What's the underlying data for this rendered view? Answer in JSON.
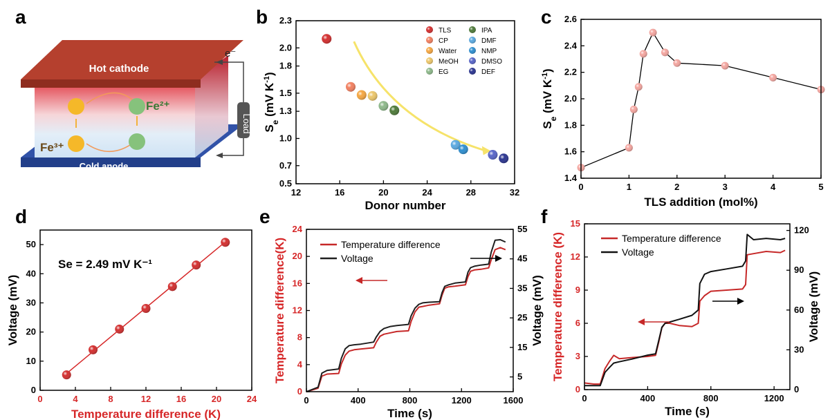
{
  "panel_labels": {
    "a": "a",
    "b": "b",
    "c": "c",
    "d": "d",
    "e": "e",
    "f": "f"
  },
  "schematic": {
    "hot_label": "Hot cathode",
    "cold_label": "Cold anode",
    "load_label": "Load",
    "electron_label": "e⁻",
    "fe2_label": "Fe²⁺",
    "fe3_label": "Fe³⁺"
  },
  "chart_data": [
    {
      "panel": "b",
      "type": "scatter",
      "xlabel": "Donor number",
      "ylabel": "Se (mV K⁻¹)",
      "xlim": [
        12,
        32
      ],
      "ylim": [
        0.5,
        2.3
      ],
      "xticks": [
        "12",
        "16",
        "20",
        "24",
        "28",
        "32"
      ],
      "yticks": [
        "0.5",
        "0.7",
        "1.0",
        "1.3",
        "1.5",
        "1.8",
        "2.0",
        "2.3"
      ],
      "points": [
        {
          "name": "TLS",
          "x": 14.8,
          "y": 2.1,
          "color": "#d32f2f"
        },
        {
          "name": "CP",
          "x": 17.0,
          "y": 1.57,
          "color": "#f28060"
        },
        {
          "name": "Water",
          "x": 18.0,
          "y": 1.48,
          "color": "#f5a742"
        },
        {
          "name": "MeOH",
          "x": 19.0,
          "y": 1.47,
          "color": "#ecc66a"
        },
        {
          "name": "EG",
          "x": 20.0,
          "y": 1.36,
          "color": "#8db88a"
        },
        {
          "name": "IPA",
          "x": 21.0,
          "y": 1.31,
          "color": "#4e7a3a"
        },
        {
          "name": "DMF",
          "x": 26.6,
          "y": 0.93,
          "color": "#5ba9e0"
        },
        {
          "name": "NMP",
          "x": 27.3,
          "y": 0.88,
          "color": "#2f8fd0"
        },
        {
          "name": "DMSO",
          "x": 30.0,
          "y": 0.82,
          "color": "#5865c8"
        },
        {
          "name": "DEF",
          "x": 31.0,
          "y": 0.78,
          "color": "#2b3590"
        }
      ],
      "legend_left": [
        "TLS",
        "CP",
        "Water",
        "MeOH",
        "EG"
      ],
      "legend_right": [
        "IPA",
        "DMF",
        "NMP",
        "DMSO",
        "DEF"
      ],
      "trend_arrow_color": "#f6e36a"
    },
    {
      "panel": "c",
      "type": "line",
      "xlabel": "TLS addition (mol%)",
      "ylabel": "Se (mV K⁻¹)",
      "xlim": [
        0,
        5
      ],
      "ylim": [
        1.4,
        2.6
      ],
      "xticks": [
        "0",
        "1",
        "2",
        "3",
        "4",
        "5"
      ],
      "yticks": [
        "1.4",
        "1.6",
        "1.8",
        "2.0",
        "2.2",
        "2.4",
        "2.6"
      ],
      "x": [
        0,
        1.0,
        1.1,
        1.2,
        1.3,
        1.5,
        1.75,
        2.0,
        3.0,
        4.0,
        5.0
      ],
      "y": [
        1.48,
        1.63,
        1.92,
        2.09,
        2.34,
        2.5,
        2.35,
        2.27,
        2.25,
        2.16,
        2.07
      ],
      "marker_color": "#f4a6a0"
    },
    {
      "panel": "d",
      "type": "scatter",
      "xlabel": "Temperature difference (K)",
      "ylabel": "Voltage (mV)",
      "xlim": [
        0,
        24
      ],
      "ylim": [
        0,
        55
      ],
      "xticks": [
        "0",
        "4",
        "8",
        "12",
        "16",
        "20",
        "24"
      ],
      "yticks": [
        "0",
        "10",
        "20",
        "30",
        "40",
        "50"
      ],
      "x": [
        3.0,
        6.0,
        9.0,
        12.0,
        15.0,
        17.7,
        21.0
      ],
      "y": [
        5.3,
        13.9,
        21.0,
        28.1,
        35.6,
        43.0,
        50.8
      ],
      "annotation": "Se = 2.49 mV K⁻¹",
      "fit_line": true
    },
    {
      "panel": "e",
      "type": "line",
      "xlabel": "Time (s)",
      "ylabel_left": "Temperature difference(K)",
      "ylabel_right": "Voltage (mV)",
      "xlim": [
        0,
        1600
      ],
      "ylim_left": [
        0,
        24
      ],
      "ylim_right": [
        0,
        55
      ],
      "xticks": [
        "0",
        "400",
        "800",
        "1200",
        "1600"
      ],
      "yticks_left": [
        "0",
        "4",
        "8",
        "12",
        "16",
        "20",
        "24"
      ],
      "yticks_right": [
        "5",
        "15",
        "25",
        "35",
        "45",
        "55"
      ],
      "series": [
        {
          "name": "Temperature difference",
          "color": "#c62828",
          "axis": "left",
          "x": [
            0,
            90,
            120,
            160,
            250,
            270,
            300,
            330,
            370,
            420,
            520,
            540,
            570,
            600,
            650,
            700,
            790,
            810,
            840,
            870,
            900,
            950,
            1030,
            1050,
            1070,
            1100,
            1150,
            1230,
            1250,
            1270,
            1300,
            1350,
            1410,
            1430,
            1460,
            1500,
            1540
          ],
          "y": [
            0,
            0.5,
            2.3,
            2.6,
            2.7,
            4.1,
            5.4,
            6.0,
            6.2,
            6.3,
            6.5,
            7.3,
            8.2,
            8.5,
            8.7,
            8.9,
            9.0,
            10.4,
            11.8,
            12.5,
            12.6,
            12.8,
            13.0,
            14.3,
            15.3,
            15.5,
            15.6,
            15.8,
            17.0,
            17.8,
            18.0,
            18.1,
            18.3,
            19.5,
            21.0,
            21.3,
            21.0
          ]
        },
        {
          "name": "Voltage",
          "color": "#1f1f1f",
          "axis": "right",
          "x": [
            0,
            90,
            120,
            160,
            250,
            270,
            300,
            330,
            370,
            420,
            520,
            540,
            570,
            600,
            650,
            700,
            790,
            810,
            840,
            870,
            900,
            950,
            1030,
            1050,
            1070,
            1100,
            1150,
            1230,
            1250,
            1270,
            1300,
            1350,
            1410,
            1430,
            1460,
            1500,
            1540
          ],
          "y": [
            0,
            1.5,
            6.3,
            7.2,
            7.7,
            11.3,
            14.5,
            15.6,
            15.9,
            16.1,
            16.8,
            18.5,
            20.4,
            21.4,
            22.1,
            22.4,
            22.8,
            25.7,
            28.3,
            29.6,
            30.1,
            30.3,
            30.5,
            33.6,
            35.7,
            36.2,
            36.8,
            37.2,
            40.5,
            42.0,
            42.5,
            42.9,
            43.2,
            47.3,
            51.3,
            51.5,
            50.7
          ]
        }
      ],
      "arrows": [
        {
          "direction": "left",
          "color": "#c62828"
        },
        {
          "direction": "right",
          "color": "#000000"
        }
      ]
    },
    {
      "panel": "f",
      "type": "line",
      "xlabel": "Time (s)",
      "ylabel_left": "Temperature difference (K)",
      "ylabel_right": "Voltage (mV)",
      "xlim": [
        0,
        1300
      ],
      "ylim_left": [
        0,
        15
      ],
      "ylim_right": [
        0,
        125
      ],
      "xticks": [
        "0",
        "400",
        "800",
        "1200"
      ],
      "yticks_left": [
        "0",
        "3",
        "6",
        "9",
        "12",
        "15"
      ],
      "yticks_right": [
        "0",
        "30",
        "60",
        "90",
        "120"
      ],
      "series": [
        {
          "name": "Temperature difference",
          "color": "#c62828",
          "axis": "left",
          "x": [
            0,
            60,
            100,
            130,
            160,
            185,
            220,
            300,
            400,
            450,
            470,
            490,
            510,
            540,
            600,
            680,
            720,
            730,
            760,
            800,
            900,
            1000,
            1020,
            1030,
            1070,
            1150,
            1240,
            1270
          ],
          "y": [
            0.6,
            0.5,
            0.5,
            1.9,
            2.6,
            3.1,
            2.8,
            2.9,
            3.0,
            3.1,
            4.3,
            5.6,
            6.0,
            6.0,
            5.8,
            5.7,
            6.0,
            8.0,
            8.5,
            8.9,
            9.0,
            9.1,
            9.5,
            12.2,
            12.3,
            12.5,
            12.4,
            12.6
          ]
        },
        {
          "name": "Voltage",
          "color": "#111111",
          "axis": "right",
          "x": [
            0,
            60,
            100,
            130,
            160,
            185,
            220,
            300,
            400,
            450,
            470,
            490,
            510,
            540,
            600,
            680,
            720,
            730,
            760,
            800,
            900,
            1000,
            1020,
            1030,
            1070,
            1150,
            1240,
            1270
          ],
          "y": [
            3,
            3,
            3,
            13,
            17,
            20,
            21,
            23,
            26,
            27,
            37,
            47,
            50,
            51,
            53,
            56,
            60,
            80,
            87,
            89,
            91,
            93,
            97,
            117,
            113,
            114,
            113,
            114
          ]
        }
      ],
      "arrows": [
        {
          "direction": "left",
          "color": "#c62828"
        },
        {
          "direction": "right",
          "color": "#000000"
        }
      ]
    }
  ]
}
